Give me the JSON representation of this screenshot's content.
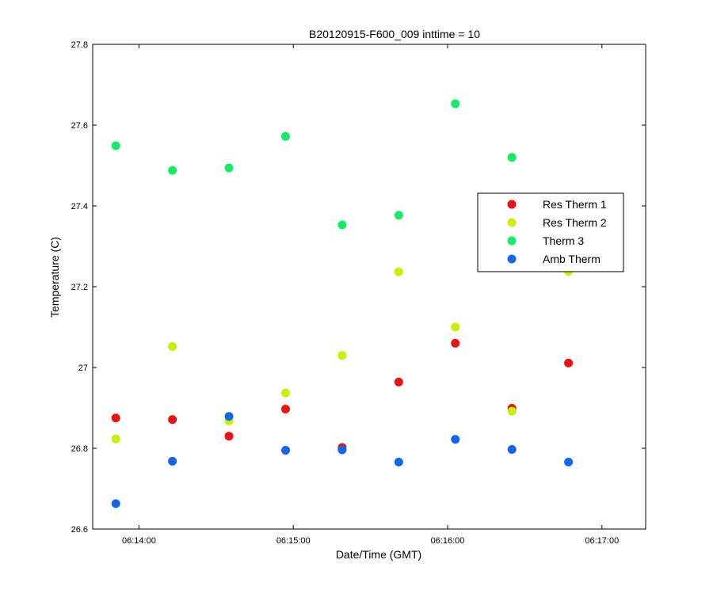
{
  "chart_data": {
    "type": "scatter",
    "title": "B20120915-F600_009 inttime = 10",
    "xlabel": "Date/Time (GMT)",
    "ylabel": "Temperature (C)",
    "xlim": [
      "06:13:42",
      "06:17:17"
    ],
    "ylim": [
      26.6,
      27.8
    ],
    "x_ticks": [
      "06:14:00",
      "06:15:00",
      "06:16:00",
      "06:17:00"
    ],
    "y_ticks": [
      "26.6",
      "26.8",
      "27",
      "27.2",
      "27.4",
      "27.6",
      "27.8"
    ],
    "grid": false,
    "legend_position": "upper right",
    "x": [
      "06:13:51",
      "06:14:13",
      "06:14:35",
      "06:14:57",
      "06:15:19",
      "06:15:41",
      "06:16:03",
      "06:16:25",
      "06:16:47"
    ],
    "series": [
      {
        "name": "Res Therm 1",
        "color": "#ee1111",
        "x": [
          "06:13:51",
          "06:14:13",
          "06:14:35",
          "06:14:57",
          "06:15:19",
          "06:15:41",
          "06:16:03",
          "06:16:25",
          "06:16:47"
        ],
        "values": [
          26.875,
          26.871,
          26.83,
          26.897,
          26.802,
          26.964,
          27.06,
          26.899,
          27.011
        ]
      },
      {
        "name": "Res Therm 2",
        "color": "#ccee00",
        "x": [
          "06:13:51",
          "06:14:13",
          "06:14:35",
          "06:14:57",
          "06:15:19",
          "06:15:41",
          "06:16:03",
          "06:16:25",
          "06:16:47"
        ],
        "values": [
          26.823,
          27.052,
          26.868,
          26.937,
          27.03,
          27.237,
          27.1,
          26.892,
          27.238
        ]
      },
      {
        "name": "Therm 3",
        "color": "#11ee66",
        "x": [
          "06:13:51",
          "06:14:13",
          "06:14:35",
          "06:14:57",
          "06:15:19",
          "06:15:41",
          "06:16:03",
          "06:16:25"
        ],
        "values": [
          27.549,
          27.488,
          27.494,
          27.572,
          27.353,
          27.377,
          27.653,
          27.52
        ]
      },
      {
        "name": "Amb Therm",
        "color": "#1166ee",
        "x": [
          "06:13:51",
          "06:14:13",
          "06:14:35",
          "06:14:57",
          "06:15:19",
          "06:15:41",
          "06:16:03",
          "06:16:25",
          "06:16:47"
        ],
        "values": [
          26.663,
          26.768,
          26.879,
          26.795,
          26.796,
          26.766,
          26.822,
          26.797,
          26.766
        ]
      }
    ]
  }
}
